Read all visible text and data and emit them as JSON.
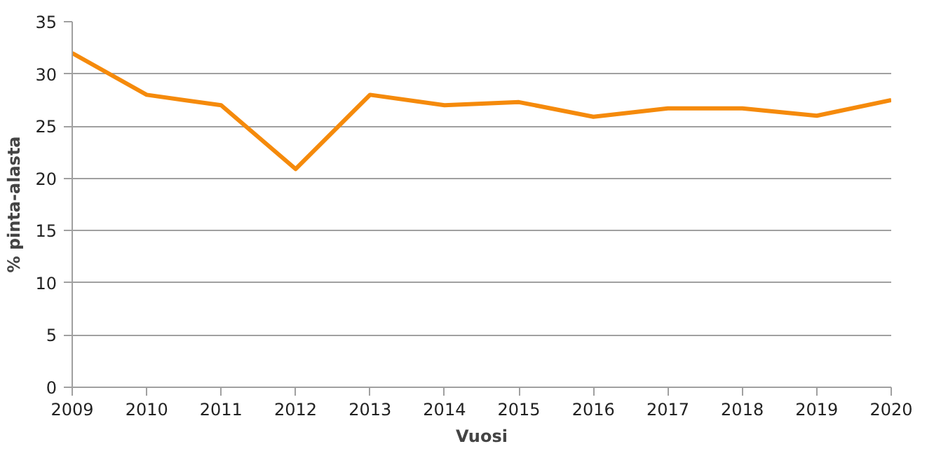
{
  "chart_data": {
    "type": "line",
    "xlabel": "Vuosi",
    "ylabel": "% pinta-alasta",
    "x": [
      2009,
      2010,
      2011,
      2012,
      2013,
      2014,
      2015,
      2016,
      2017,
      2018,
      2019,
      2020
    ],
    "series": [
      {
        "color": "#f58a0b",
        "values": [
          32,
          28,
          27,
          20.9,
          28,
          27,
          27.3,
          25.9,
          26.7,
          26.7,
          26,
          27.5
        ]
      }
    ],
    "xlim": [
      2009,
      2020
    ],
    "xticks": [
      2009,
      2010,
      2011,
      2012,
      2013,
      2014,
      2015,
      2016,
      2017,
      2018,
      2019,
      2020
    ],
    "ylim": [
      0,
      35
    ],
    "yticks": [
      0,
      5,
      10,
      15,
      20,
      25,
      30,
      35
    ],
    "grid": "y",
    "marker": "none",
    "line_style": "solid"
  }
}
